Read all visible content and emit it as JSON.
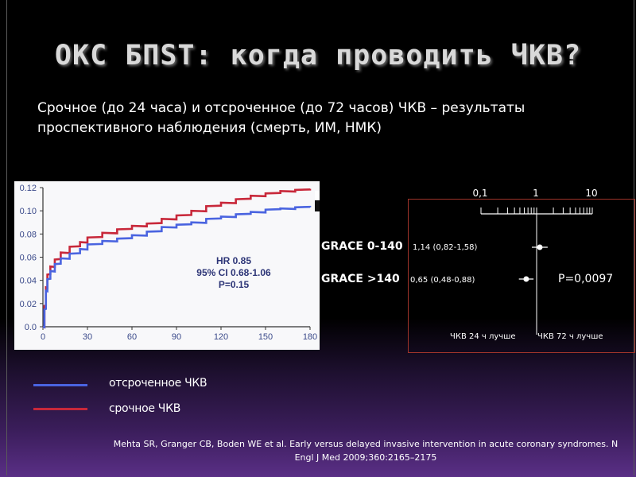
{
  "title": "ОКС БПST: когда проводить ЧКВ?",
  "subtitle": "Срочное (до 24 часа) и отсроченное  (до 72 часов) ЧКВ – результаты проспективного наблюдения (смерть, ИМ, НМК)",
  "chart_data": [
    {
      "type": "line",
      "title": "",
      "xlabel": "",
      "ylabel": "",
      "xlim": [
        0,
        180
      ],
      "ylim": [
        0,
        0.12
      ],
      "x_ticks": [
        "0",
        "30",
        "60",
        "90",
        "120",
        "150",
        "180"
      ],
      "y_ticks": [
        "0.0",
        "0.02",
        "0.04",
        "0.06",
        "0.08",
        "0.10",
        "0.12"
      ],
      "grid": false,
      "annotation": [
        "HR 0.85",
        "95% CI 0.68-1.06",
        "P=0.15"
      ],
      "series": [
        {
          "name": "срочное ЧКВ",
          "color": "#c8283a",
          "x": [
            0,
            1,
            2,
            3,
            5,
            8,
            12,
            18,
            25,
            30,
            40,
            50,
            60,
            70,
            80,
            90,
            100,
            110,
            120,
            130,
            140,
            150,
            160,
            170,
            180
          ],
          "y": [
            0,
            0.018,
            0.034,
            0.045,
            0.052,
            0.058,
            0.064,
            0.069,
            0.073,
            0.077,
            0.081,
            0.084,
            0.087,
            0.089,
            0.093,
            0.096,
            0.1,
            0.104,
            0.107,
            0.11,
            0.113,
            0.115,
            0.117,
            0.118,
            0.119
          ]
        },
        {
          "name": "отсроченное ЧКВ",
          "color": "#4a64e0",
          "x": [
            0,
            1,
            2,
            3,
            5,
            8,
            12,
            18,
            25,
            30,
            40,
            50,
            60,
            70,
            80,
            90,
            100,
            110,
            120,
            130,
            140,
            150,
            160,
            170,
            180
          ],
          "y": [
            0,
            0.015,
            0.031,
            0.041,
            0.048,
            0.054,
            0.059,
            0.063,
            0.067,
            0.071,
            0.074,
            0.076,
            0.079,
            0.082,
            0.086,
            0.088,
            0.09,
            0.093,
            0.095,
            0.097,
            0.099,
            0.101,
            0.102,
            0.103,
            0.103
          ]
        }
      ]
    },
    {
      "type": "forest",
      "scale": "log",
      "x_ticks": [
        "0,1",
        "1",
        "10"
      ],
      "rows": [
        {
          "label": "GRACE 0-140",
          "hr": 1.14,
          "ci_low": 0.82,
          "ci_high": 1.58,
          "ci_text": "1,14 (0,82-1,58)"
        },
        {
          "label": "GRACE >140",
          "hr": 0.65,
          "ci_low": 0.48,
          "ci_high": 0.88,
          "ci_text": "0,65 (0,48-0,88)"
        }
      ],
      "p_text": "P=0,0097",
      "left_label": "ЧКВ 24 ч лучше",
      "right_label": "ЧКВ 72 ч лучше"
    }
  ],
  "legend": {
    "delayed": "отсроченное ЧКВ",
    "early": "срочное ЧКВ"
  },
  "reference": "Mehta SR, Granger CB, Boden WE et al. Early  versus delayed  invasive intervention in acute coronary syndromes.  N Engl J Med 2009;360:2165–2175"
}
